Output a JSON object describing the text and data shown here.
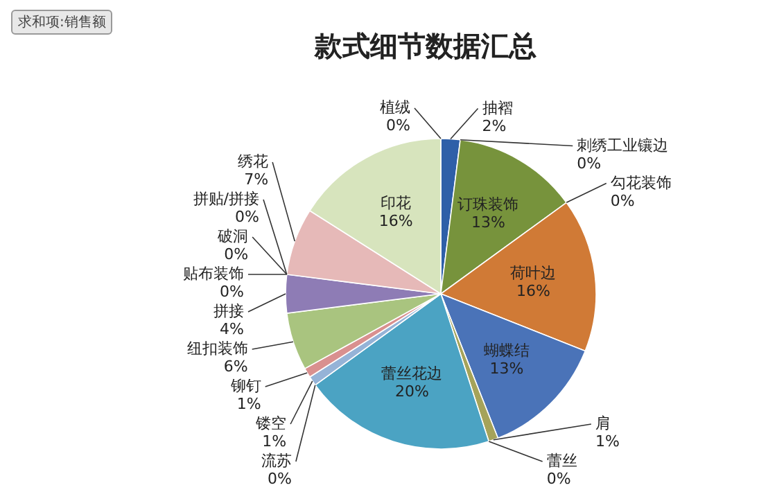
{
  "chart_data": {
    "type": "pie",
    "title": "款式细节数据汇总",
    "annotations": [
      "求和项:销售额"
    ],
    "categories": [
      "抽褶",
      "刺绣工业镶边",
      "订珠装饰",
      "勾花装饰",
      "荷叶边",
      "蝴蝶结",
      "肩",
      "蕾丝",
      "蕾丝花边",
      "流苏",
      "镂空",
      "铆钉",
      "纽扣装饰",
      "拼接",
      "拼贴/拼接",
      "破洞",
      "贴布装饰",
      "绣花",
      "印花",
      "植绒"
    ],
    "values": [
      2,
      0,
      13,
      0,
      16,
      13,
      1,
      0,
      20,
      0,
      1,
      1,
      6,
      4,
      0,
      0,
      0,
      7,
      16,
      0
    ],
    "value_labels": [
      "2%",
      "0%",
      "13%",
      "0%",
      "16%",
      "13%",
      "1%",
      "0%",
      "20%",
      "0%",
      "1%",
      "1%",
      "6%",
      "4%",
      "0%",
      "0%",
      "0%",
      "7%",
      "16%",
      "0%"
    ],
    "colors": [
      "#2e5fa8",
      "#c0504d",
      "#77933c",
      "#8064a2",
      "#d07a36",
      "#4a73b8",
      "#a5a35a",
      "#f79646",
      "#4ba3c3",
      "#7f7f7f",
      "#95b3d7",
      "#d9908f",
      "#a9c47f",
      "#8e7cb5",
      "#c3d69b",
      "#b7a5cf",
      "#92cddc",
      "#e6b9b8",
      "#d7e4bd",
      "#4f81bd"
    ],
    "data_labels": true
  }
}
